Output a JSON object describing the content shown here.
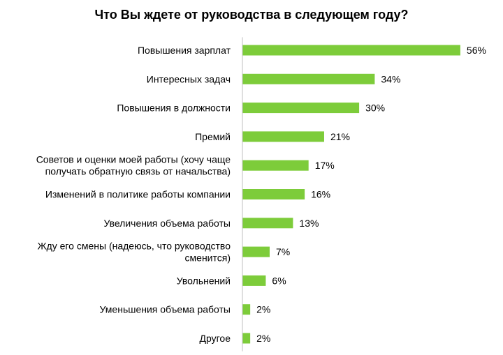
{
  "chart_data": {
    "type": "bar",
    "orientation": "horizontal",
    "title": "Что Вы ждете от руководства в следующем году?",
    "categories": [
      "Повышения зарплат",
      "Интересных задач",
      "Повышения в должности",
      "Премий",
      "Советов и оценки моей работы (хочу чаще получать обратную связь от начальства)",
      "Изменений в политике работы компании",
      "Увеличения объема работы",
      "Жду его смены (надеюсь, что руководство сменится)",
      "Увольнений",
      "Уменьшения объема работы",
      "Другое"
    ],
    "category_lines": [
      [
        "Повышения зарплат"
      ],
      [
        "Интересных задач"
      ],
      [
        "Повышения в должности"
      ],
      [
        "Премий"
      ],
      [
        "Советов и оценки моей работы (хочу чаще",
        "получать обратную связь от начальства)"
      ],
      [
        "Изменений в политике работы компании"
      ],
      [
        "Увеличения объема работы"
      ],
      [
        "Жду его смены (надеюсь, что руководство",
        "сменится)"
      ],
      [
        "Увольнений"
      ],
      [
        "Уменьшения объема работы"
      ],
      [
        "Другое"
      ]
    ],
    "values": [
      56,
      34,
      30,
      21,
      17,
      16,
      13,
      7,
      6,
      2,
      2
    ],
    "value_labels": [
      "56%",
      "34%",
      "30%",
      "21%",
      "17%",
      "16%",
      "13%",
      "7%",
      "6%",
      "2%",
      "2%"
    ],
    "unit": "%",
    "xlim": [
      0,
      100
    ],
    "grid": false,
    "legend": "none",
    "bar_color": "#7dcc3a",
    "axis_color": "#bfbfbf"
  }
}
